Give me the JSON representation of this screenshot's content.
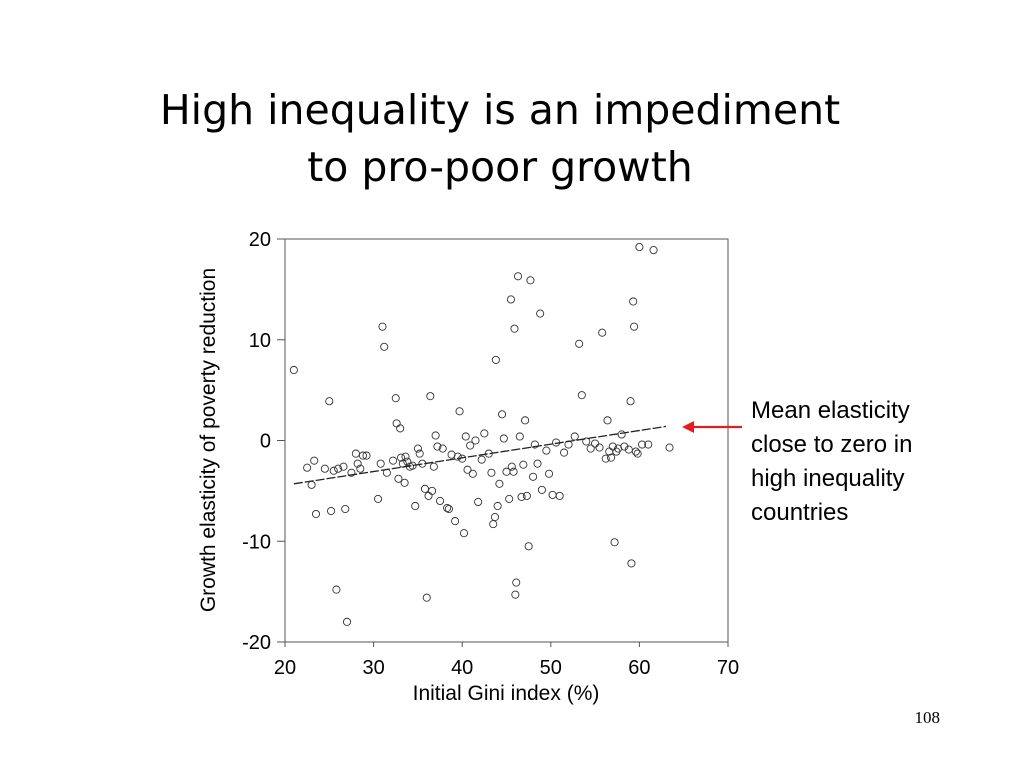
{
  "slide": {
    "title_line1": "High inequality is an impediment",
    "title_line2": "to pro-poor growth",
    "annotation_lines": [
      "Mean elasticity",
      "close to zero in",
      "high inequality",
      "countries"
    ],
    "page_number": "108"
  },
  "chart_data": {
    "type": "scatter",
    "title": "",
    "xlabel": "Initial Gini index (%)",
    "ylabel": "Growth elasticity of poverty reduction",
    "xlim": [
      20,
      70
    ],
    "ylim": [
      -20,
      20
    ],
    "xticks": [
      20,
      30,
      40,
      50,
      60,
      70
    ],
    "yticks": [
      20,
      10,
      0,
      -10,
      -20
    ],
    "grid": false,
    "legend": "none",
    "points": [
      [
        21,
        7
      ],
      [
        22.5,
        -2.7
      ],
      [
        23,
        -4.4
      ],
      [
        23.3,
        -2
      ],
      [
        23.5,
        -7.3
      ],
      [
        24.5,
        -2.8
      ],
      [
        25,
        3.9
      ],
      [
        25.2,
        -7
      ],
      [
        25.5,
        -3
      ],
      [
        25.8,
        -14.8
      ],
      [
        26,
        -2.8
      ],
      [
        26.6,
        -2.6
      ],
      [
        26.8,
        -6.8
      ],
      [
        27,
        -18
      ],
      [
        27.5,
        -3.2
      ],
      [
        28,
        -1.3
      ],
      [
        28.2,
        -2.3
      ],
      [
        28.5,
        -2.8
      ],
      [
        28.8,
        -1.5
      ],
      [
        29.2,
        -1.5
      ],
      [
        30.5,
        -5.8
      ],
      [
        30.8,
        -2.3
      ],
      [
        31,
        11.3
      ],
      [
        31.2,
        9.3
      ],
      [
        31.5,
        -3.2
      ],
      [
        32.2,
        -2
      ],
      [
        32.5,
        4.2
      ],
      [
        32.6,
        1.7
      ],
      [
        32.8,
        -3.8
      ],
      [
        33,
        1.2
      ],
      [
        33.1,
        -1.7
      ],
      [
        33.3,
        -2.3
      ],
      [
        33.5,
        -4.2
      ],
      [
        33.6,
        -1.6
      ],
      [
        33.8,
        -2.1
      ],
      [
        34.1,
        -2.6
      ],
      [
        34.4,
        -2.5
      ],
      [
        34.7,
        -6.5
      ],
      [
        35,
        -0.8
      ],
      [
        35.2,
        -1.3
      ],
      [
        35.5,
        -2.3
      ],
      [
        35.8,
        -4.8
      ],
      [
        36,
        -15.6
      ],
      [
        36.2,
        -5.5
      ],
      [
        36.4,
        4.4
      ],
      [
        36.6,
        -5
      ],
      [
        36.8,
        -2.6
      ],
      [
        37,
        0.5
      ],
      [
        37.2,
        -0.6
      ],
      [
        37.5,
        -6
      ],
      [
        37.8,
        -0.8
      ],
      [
        38.3,
        -6.7
      ],
      [
        38.5,
        -6.8
      ],
      [
        38.8,
        -1.4
      ],
      [
        39.2,
        -8
      ],
      [
        39.5,
        -1.6
      ],
      [
        39.7,
        2.9
      ],
      [
        40,
        -1.8
      ],
      [
        40.2,
        -9.2
      ],
      [
        40.4,
        0.4
      ],
      [
        40.6,
        -2.9
      ],
      [
        40.9,
        -0.5
      ],
      [
        41.2,
        -3.3
      ],
      [
        41.5,
        0
      ],
      [
        41.8,
        -6.1
      ],
      [
        42.2,
        -1.9
      ],
      [
        42.5,
        0.7
      ],
      [
        43,
        -1.3
      ],
      [
        43.3,
        -3.2
      ],
      [
        43.5,
        -8.3
      ],
      [
        43.7,
        -7.6
      ],
      [
        43.8,
        8
      ],
      [
        44,
        -6.5
      ],
      [
        44.2,
        -4.3
      ],
      [
        44.5,
        2.6
      ],
      [
        44.7,
        0.2
      ],
      [
        45,
        -3.1
      ],
      [
        45.3,
        -5.8
      ],
      [
        45.5,
        14
      ],
      [
        45.6,
        -2.6
      ],
      [
        45.8,
        -3.1
      ],
      [
        45.9,
        11.1
      ],
      [
        46,
        -15.3
      ],
      [
        46.1,
        -14.1
      ],
      [
        46.3,
        16.3
      ],
      [
        46.5,
        0.4
      ],
      [
        46.7,
        -5.6
      ],
      [
        46.9,
        -2.4
      ],
      [
        47.1,
        2
      ],
      [
        47.3,
        -5.5
      ],
      [
        47.5,
        -10.5
      ],
      [
        47.7,
        15.9
      ],
      [
        48,
        -3.6
      ],
      [
        48.2,
        -0.4
      ],
      [
        48.5,
        -2.3
      ],
      [
        48.8,
        12.6
      ],
      [
        49,
        -4.9
      ],
      [
        49.5,
        -1
      ],
      [
        49.8,
        -3.3
      ],
      [
        50.2,
        -5.4
      ],
      [
        50.6,
        -0.2
      ],
      [
        51,
        -5.5
      ],
      [
        51.5,
        -1.2
      ],
      [
        52,
        -0.4
      ],
      [
        52.7,
        0.4
      ],
      [
        53.2,
        9.6
      ],
      [
        53.5,
        4.5
      ],
      [
        54,
        -0.1
      ],
      [
        54.5,
        -0.8
      ],
      [
        55,
        -0.3
      ],
      [
        55.5,
        -0.7
      ],
      [
        55.8,
        10.7
      ],
      [
        56.2,
        -1.8
      ],
      [
        56.4,
        2
      ],
      [
        56.6,
        -1.1
      ],
      [
        56.8,
        -1.7
      ],
      [
        57,
        -0.6
      ],
      [
        57.2,
        -10.1
      ],
      [
        57.4,
        -1.1
      ],
      [
        57.6,
        -0.8
      ],
      [
        58,
        0.6
      ],
      [
        58.3,
        -0.6
      ],
      [
        58.8,
        -0.9
      ],
      [
        59,
        3.9
      ],
      [
        59.1,
        -12.2
      ],
      [
        59.3,
        13.8
      ],
      [
        59.4,
        11.3
      ],
      [
        59.6,
        -1.1
      ],
      [
        59.8,
        -1.3
      ],
      [
        60,
        19.2
      ],
      [
        60.3,
        -0.4
      ],
      [
        61,
        -0.4
      ],
      [
        61.6,
        18.9
      ],
      [
        63.4,
        -0.7
      ]
    ],
    "trend_line": {
      "x": [
        21,
        63
      ],
      "y": [
        -4.3,
        1.4
      ]
    }
  }
}
